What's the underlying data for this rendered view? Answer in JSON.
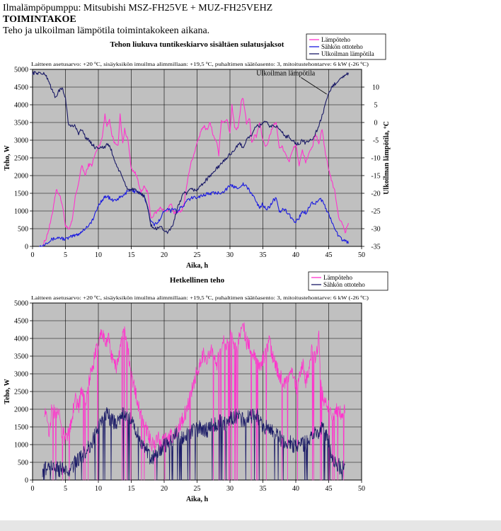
{
  "header": {
    "line1": "Ilmalämpöpumppu: Mitsubishi MSZ-FH25VE + MUZ-FH25VEHZ",
    "line2": "TOIMINTAKOE",
    "line3": "Teho ja ulkoilman lämpötila toimintakokeen aikana."
  },
  "colors": {
    "magenta": "#ff33cc",
    "blue": "#1a1adf",
    "navy": "#1a1a66",
    "plot_bg": "#c0c0c0"
  },
  "chart_data": [
    {
      "type": "line",
      "title": "Tehon liukuva tuntikeskiarvo sisältäen sulatusjaksot",
      "subtitle": "Laitteen asetusarvo: +20 ºC, sisäyksikön imuilma alimmillaan: +19,5 ºC, puhaltimen säätöasento: 3, mitoitustehontarve: 6 kW (-26 ºC)",
      "xlabel": "Aika, h",
      "ylabel": "Teho, W",
      "y2label": "Ulkoilman lämpötila, ºC",
      "xlim": [
        0,
        50
      ],
      "ylim": [
        0,
        5000
      ],
      "y2lim": [
        -35,
        15
      ],
      "xticks": [
        0,
        5,
        10,
        15,
        20,
        25,
        30,
        35,
        40,
        45,
        50
      ],
      "yticks": [
        0,
        500,
        1000,
        1500,
        2000,
        2500,
        3000,
        3500,
        4000,
        4500,
        5000
      ],
      "y2ticks": [
        -35,
        -30,
        -25,
        -20,
        -15,
        -10,
        -5,
        0,
        5,
        10
      ],
      "annotation": "Ulkoilman lämpötila",
      "legend_position": "top-right",
      "series": [
        {
          "name": "Lämpöteho",
          "color": "#ff33cc",
          "axis": "left",
          "x": [
            1.5,
            2,
            2.5,
            3,
            3.3,
            3.6,
            4,
            4.5,
            5,
            5.5,
            6,
            6.5,
            7,
            7.5,
            8,
            8.5,
            9,
            9.5,
            10,
            10.5,
            11,
            11.3,
            11.7,
            12,
            12.5,
            13,
            13.3,
            13.7,
            14,
            14.5,
            15,
            15.5,
            16,
            16.5,
            17,
            17.5,
            18,
            18.5,
            19,
            19.5,
            20,
            20.5,
            21,
            21.5,
            22,
            22.5,
            23,
            23.5,
            24,
            24.5,
            25,
            25.5,
            26,
            26.5,
            27,
            27.5,
            28,
            28.3,
            28.7,
            29,
            29.5,
            30,
            30.3,
            30.7,
            31,
            31.3,
            31.7,
            32,
            32.5,
            33,
            33.3,
            33.7,
            34,
            34.5,
            35,
            35.5,
            36,
            36.5,
            37,
            37.5,
            38,
            38.5,
            39,
            39.5,
            40,
            40.5,
            41,
            41.5,
            42,
            42.5,
            43,
            43.5,
            44,
            44.5,
            45,
            45.5,
            46,
            46.5,
            47,
            47.5,
            48
          ],
          "values": [
            0,
            200,
            500,
            900,
            1300,
            1600,
            1500,
            1200,
            600,
            450,
            700,
            1400,
            1800,
            2300,
            2000,
            2300,
            2300,
            2600,
            2800,
            3000,
            3700,
            3400,
            3600,
            3200,
            2900,
            2900,
            3700,
            2900,
            3300,
            3000,
            2200,
            2100,
            1900,
            1500,
            1700,
            1500,
            800,
            900,
            1000,
            1100,
            1000,
            1000,
            1200,
            950,
            1000,
            950,
            1200,
            1800,
            2300,
            2600,
            2900,
            3200,
            3400,
            3300,
            3500,
            3100,
            2900,
            2600,
            3600,
            3500,
            3600,
            3200,
            4000,
            3400,
            3300,
            3400,
            4100,
            4200,
            3500,
            3600,
            2900,
            3100,
            3100,
            3500,
            3000,
            2800,
            3100,
            3400,
            3500,
            2800,
            2800,
            2600,
            2400,
            2700,
            2900,
            2300,
            2700,
            2400,
            2600,
            2800,
            3200,
            2900,
            3300,
            2600,
            2200,
            1800,
            1500,
            800,
            700,
            400,
            650
          ]
        },
        {
          "name": "Sähkön ottoteho",
          "color": "#1a1adf",
          "axis": "left",
          "x": [
            1,
            1.5,
            2,
            3,
            4,
            5,
            6,
            7,
            8,
            9,
            9.5,
            10,
            10.5,
            11,
            11.5,
            12,
            12.5,
            13,
            13.5,
            14,
            14.5,
            15,
            15.5,
            16,
            16.5,
            17,
            17.5,
            18,
            18.5,
            19,
            19.5,
            20,
            20.5,
            21,
            21.5,
            22,
            22.5,
            23,
            23.5,
            24,
            25,
            26,
            27,
            28,
            29,
            30,
            30.5,
            31,
            31.5,
            32,
            32.5,
            33,
            33.5,
            34,
            34.5,
            35,
            35.5,
            36,
            36.5,
            37,
            37.5,
            38,
            38.5,
            39,
            39.5,
            40,
            40.5,
            41,
            41.5,
            42,
            42.5,
            43,
            43.5,
            44,
            44.5,
            45,
            45.5,
            46,
            46.5,
            47,
            47.5,
            48
          ],
          "values": [
            0,
            0,
            100,
            200,
            250,
            200,
            280,
            350,
            500,
            700,
            900,
            1150,
            1300,
            1400,
            1400,
            1300,
            1300,
            1350,
            1400,
            1450,
            1600,
            1600,
            1550,
            1550,
            1450,
            1400,
            1100,
            700,
            600,
            700,
            800,
            1000,
            1100,
            1000,
            1100,
            950,
            1100,
            1150,
            1300,
            1350,
            1400,
            1450,
            1500,
            1500,
            1550,
            1700,
            1700,
            1650,
            1700,
            1750,
            1700,
            1550,
            1450,
            1250,
            1100,
            1200,
            1050,
            1100,
            1300,
            1350,
            950,
            1050,
            1000,
            900,
            750,
            700,
            800,
            1000,
            950,
            1100,
            1250,
            1200,
            1350,
            1300,
            1100,
            900,
            700,
            450,
            300,
            200,
            150,
            100
          ]
        },
        {
          "name": "Ulkoilman lämpötila",
          "color": "#1a1a66",
          "axis": "right",
          "x": [
            0,
            1,
            2,
            2.5,
            3,
            3.5,
            4,
            4.5,
            5,
            5.5,
            6,
            6.5,
            7,
            7.5,
            8,
            8.5,
            9,
            9.5,
            10,
            10.5,
            11,
            11.5,
            12,
            12.5,
            13,
            13.5,
            14,
            14.5,
            15,
            15.5,
            16,
            16.5,
            17,
            17.5,
            18,
            18.5,
            19,
            19.5,
            20,
            20.5,
            21,
            21.5,
            22,
            22.5,
            23,
            23.5,
            24,
            24.5,
            25,
            25.5,
            26,
            26.5,
            27,
            27.5,
            28,
            28.5,
            29,
            29.5,
            30,
            30.5,
            31,
            31.5,
            32,
            32.5,
            33,
            33.5,
            34,
            34.5,
            35,
            35.5,
            36,
            36.5,
            37,
            37.5,
            38,
            38.5,
            39,
            39.5,
            40,
            40.5,
            41,
            41.5,
            42,
            42.5,
            43,
            43.5,
            44,
            44.5,
            45,
            45.5,
            46,
            46.5,
            47,
            47.5,
            48
          ],
          "values": [
            14,
            14,
            13.5,
            11.5,
            9,
            7,
            9,
            9.5,
            7,
            -1,
            -1,
            -1,
            -3,
            -2,
            -4,
            -5,
            -6,
            -7,
            -7,
            -7,
            -7,
            -6,
            -8,
            -11,
            -13,
            -15,
            -17,
            -19,
            -19,
            -19,
            -20,
            -20,
            -21,
            -24,
            -29,
            -30,
            -30,
            -29,
            -31,
            -31,
            -30,
            -28,
            -24,
            -22,
            -20,
            -20,
            -19,
            -19,
            -19,
            -18,
            -17,
            -16,
            -15,
            -14,
            -13,
            -12,
            -11,
            -10,
            -9,
            -8,
            -7,
            -6,
            -7,
            -5,
            -4,
            -3,
            -1,
            -1,
            0,
            0,
            -1,
            -1,
            -1,
            -2,
            -3,
            -4,
            -4,
            -5,
            -6,
            -6,
            -5,
            -6,
            -5,
            -5,
            -3,
            -1,
            2,
            5,
            8,
            10,
            11,
            12,
            13,
            13,
            14
          ]
        }
      ]
    },
    {
      "type": "line",
      "title": "Hetkellinen teho",
      "subtitle": "Laitteen asetusarvo: +20 ºC, sisäyksikön imuilma alimmillaan: +19,5 ºC, puhaltimen säätöasento: 3, mitoitustehontarve: 6 kW (-26 ºC)",
      "xlabel": "Aika, h",
      "ylabel": "Teho, W",
      "xlim": [
        0,
        50
      ],
      "ylim": [
        0,
        5000
      ],
      "xticks": [
        0,
        5,
        10,
        15,
        20,
        25,
        30,
        35,
        40,
        45,
        50
      ],
      "yticks": [
        0,
        500,
        1000,
        1500,
        2000,
        2500,
        3000,
        3500,
        4000,
        4500,
        5000
      ],
      "legend_position": "top-right",
      "series": [
        {
          "name": "Lämpöteho",
          "color": "#ff33cc",
          "x": [
            1.8,
            2.5,
            3,
            3.5,
            4,
            4.5,
            5,
            5.5,
            6,
            6.5,
            7,
            7.5,
            8,
            8.5,
            9,
            9.5,
            10,
            10.5,
            11,
            11.5,
            12,
            12.5,
            13,
            13.5,
            14,
            14.5,
            15,
            15.5,
            16,
            16.5,
            17,
            17.5,
            18,
            18.5,
            19,
            19.5,
            20,
            20.5,
            21,
            21.5,
            22,
            22.5,
            23,
            23.5,
            24,
            24.5,
            25,
            25.5,
            26,
            26.5,
            27,
            27.5,
            28,
            28.5,
            29,
            29.5,
            30,
            30.5,
            31,
            31.5,
            32,
            32.5,
            33,
            33.5,
            34,
            34.5,
            35,
            35.5,
            36,
            36.5,
            37,
            37.5,
            38,
            38.5,
            39,
            39.5,
            40,
            40.5,
            41,
            41.5,
            42,
            42.5,
            43,
            43.5,
            44,
            44.5,
            45,
            45.5,
            46,
            46.5,
            47,
            47.5
          ],
          "values": [
            2000,
            1300,
            2100,
            1800,
            2000,
            1300,
            1200,
            1400,
            1800,
            2300,
            2000,
            2600,
            2200,
            2800,
            3100,
            3500,
            3900,
            4300,
            3800,
            4100,
            3500,
            3200,
            3300,
            3900,
            4200,
            3700,
            2900,
            2600,
            2200,
            1800,
            1500,
            1400,
            1000,
            1100,
            1200,
            1000,
            1200,
            1100,
            1300,
            1200,
            1400,
            1600,
            1800,
            2000,
            2400,
            2700,
            3100,
            3300,
            3600,
            3400,
            3700,
            3500,
            3300,
            3600,
            3900,
            3700,
            4100,
            3900,
            3600,
            4200,
            4400,
            3900,
            3800,
            3600,
            3300,
            3100,
            3400,
            3600,
            3900,
            3500,
            3200,
            3000,
            2800,
            2700,
            2900,
            3100,
            2600,
            2900,
            3300,
            2800,
            3100,
            3700,
            3400,
            4000,
            2400,
            2200,
            2100,
            1900,
            1900,
            2000,
            1900,
            2100
          ]
        },
        {
          "name": "Sähkön ottoteho",
          "color": "#1a1a66",
          "x": [
            1.5,
            2,
            3,
            4,
            5,
            5.5,
            6,
            6.5,
            7,
            7.5,
            8,
            8.5,
            9,
            9.5,
            10,
            10.5,
            11,
            11.5,
            12,
            12.5,
            13,
            13.5,
            14,
            14.5,
            15,
            15.5,
            16,
            16.5,
            17,
            17.5,
            18,
            18.5,
            19,
            19.5,
            20,
            20.5,
            21,
            21.5,
            22,
            22.5,
            23,
            23.5,
            24,
            24.5,
            25,
            25.5,
            26,
            26.5,
            27,
            27.5,
            28,
            28.5,
            29,
            29.5,
            30,
            30.5,
            31,
            31.5,
            32,
            32.5,
            33,
            33.5,
            34,
            34.5,
            35,
            35.5,
            36,
            36.5,
            37,
            37.5,
            38,
            38.5,
            39,
            39.5,
            40,
            40.5,
            41,
            41.5,
            42,
            42.5,
            43,
            43.5,
            44,
            44.5,
            45,
            45.5,
            46,
            46.5,
            47,
            47.5
          ],
          "values": [
            300,
            350,
            350,
            300,
            350,
            300,
            400,
            500,
            550,
            650,
            800,
            900,
            1100,
            1300,
            1500,
            1600,
            1900,
            1800,
            1700,
            1600,
            1700,
            1800,
            1900,
            1800,
            1700,
            1500,
            1300,
            1100,
            900,
            800,
            500,
            700,
            800,
            900,
            1000,
            1000,
            1100,
            1200,
            1300,
            1200,
            1200,
            1300,
            1300,
            1400,
            1400,
            1500,
            1450,
            1400,
            1500,
            1550,
            1600,
            1650,
            1550,
            1600,
            1700,
            1750,
            1800,
            1750,
            1700,
            1800,
            1850,
            1800,
            1850,
            1650,
            1550,
            1500,
            1450,
            1400,
            1300,
            1200,
            1100,
            1050,
            1100,
            1000,
            950,
            900,
            1000,
            1050,
            1100,
            1200,
            1300,
            1200,
            1500,
            1300,
            1100,
            600,
            500,
            400,
            350,
            300
          ]
        }
      ]
    }
  ]
}
